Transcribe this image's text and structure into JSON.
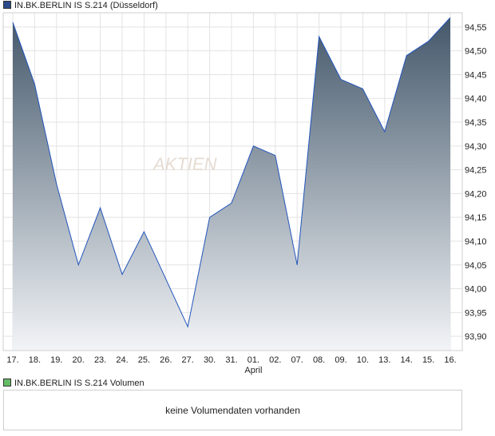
{
  "price_legend": {
    "label": "IN.BK.BERLIN IS S.214 (Düsseldorf)",
    "color": "#2b4a8a"
  },
  "volume_legend": {
    "label": "IN.BK.BERLIN IS S.214 Volumen",
    "color": "#66bb66"
  },
  "volume_panel": {
    "message": "keine Volumendaten vorhanden"
  },
  "watermark": {
    "text": "AKTIEN"
  },
  "chart_data": {
    "type": "area",
    "categories": [
      "17.",
      "18.",
      "19.",
      "20.",
      "23.",
      "24.",
      "25.",
      "26.",
      "27.",
      "30.",
      "31.",
      "01.",
      "02.",
      "07.",
      "08.",
      "09.",
      "10.",
      "13.",
      "14.",
      "15.",
      "16."
    ],
    "month_label": {
      "at": "01.",
      "text": "April"
    },
    "series": [
      {
        "values": [
          94.56,
          94.43,
          94.22,
          94.05,
          94.17,
          94.03,
          94.12,
          94.02,
          93.92,
          94.15,
          94.18,
          94.3,
          94.28,
          94.05,
          94.53,
          94.44,
          94.42,
          94.33,
          94.49,
          94.52,
          94.57
        ]
      }
    ],
    "y_ticks": [
      "93,90",
      "93,95",
      "94,00",
      "94,05",
      "94,10",
      "94,15",
      "94,20",
      "94,25",
      "94,30",
      "94,35",
      "94,40",
      "94,45",
      "94,50",
      "94,55"
    ],
    "ylim": [
      93.87,
      94.58
    ],
    "y_axis_side": "right",
    "grid": true,
    "line_color": "#2255bb",
    "fill_top_color": "#44586b",
    "fill_bottom_color": "#f2f4f7",
    "grid_color": "#e3e3e3"
  }
}
